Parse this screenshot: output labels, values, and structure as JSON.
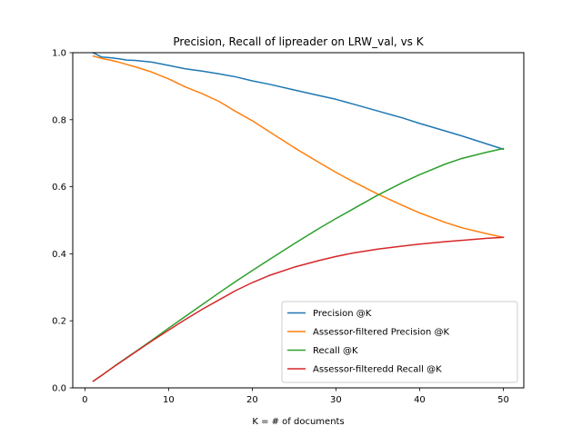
{
  "chart_data": {
    "type": "line",
    "title": "Precision, Recall of lipreader on LRW_val, vs K",
    "xlabel": "K = # of documents",
    "ylabel": "",
    "xlim": [
      -1.45,
      52.45
    ],
    "ylim": [
      0.0,
      1.0
    ],
    "xticks": [
      0,
      10,
      20,
      30,
      40,
      50
    ],
    "yticks": [
      0.0,
      0.2,
      0.4,
      0.6,
      0.8,
      1.0
    ],
    "xtick_labels": [
      "0",
      "10",
      "20",
      "30",
      "40",
      "50"
    ],
    "ytick_labels": [
      "0.0",
      "0.2",
      "0.4",
      "0.6",
      "0.8",
      "1.0"
    ],
    "grid": false,
    "legend_position": "lower-right",
    "x": [
      1,
      2,
      3,
      4,
      5,
      6,
      8,
      10,
      12,
      14,
      16,
      18,
      20,
      22,
      25,
      28,
      30,
      32,
      35,
      38,
      40,
      43,
      45,
      48,
      50
    ],
    "series": [
      {
        "name": "Precision @K",
        "color": "#1f77b4",
        "values": [
          1.0,
          0.987,
          0.985,
          0.982,
          0.978,
          0.977,
          0.972,
          0.962,
          0.952,
          0.945,
          0.937,
          0.928,
          0.916,
          0.906,
          0.889,
          0.872,
          0.861,
          0.847,
          0.826,
          0.805,
          0.789,
          0.767,
          0.752,
          0.728,
          0.712
        ]
      },
      {
        "name": "Assessor-filtered Precision @K",
        "color": "#ff7f0e",
        "values": [
          0.99,
          0.983,
          0.978,
          0.972,
          0.965,
          0.958,
          0.942,
          0.922,
          0.898,
          0.878,
          0.855,
          0.825,
          0.797,
          0.765,
          0.717,
          0.672,
          0.643,
          0.616,
          0.578,
          0.544,
          0.522,
          0.494,
          0.478,
          0.46,
          0.449
        ]
      },
      {
        "name": "Recall @K",
        "color": "#2ca02c",
        "values": [
          0.02,
          0.037,
          0.055,
          0.073,
          0.09,
          0.107,
          0.142,
          0.178,
          0.213,
          0.248,
          0.283,
          0.317,
          0.35,
          0.382,
          0.43,
          0.476,
          0.505,
          0.533,
          0.575,
          0.613,
          0.636,
          0.667,
          0.684,
          0.703,
          0.714
        ]
      },
      {
        "name": "Assessor-filteredd Recall @K",
        "color": "#d62728",
        "values": [
          0.02,
          0.037,
          0.055,
          0.072,
          0.089,
          0.106,
          0.14,
          0.172,
          0.204,
          0.234,
          0.262,
          0.29,
          0.314,
          0.335,
          0.36,
          0.38,
          0.392,
          0.402,
          0.414,
          0.423,
          0.429,
          0.436,
          0.44,
          0.446,
          0.449
        ]
      }
    ]
  }
}
